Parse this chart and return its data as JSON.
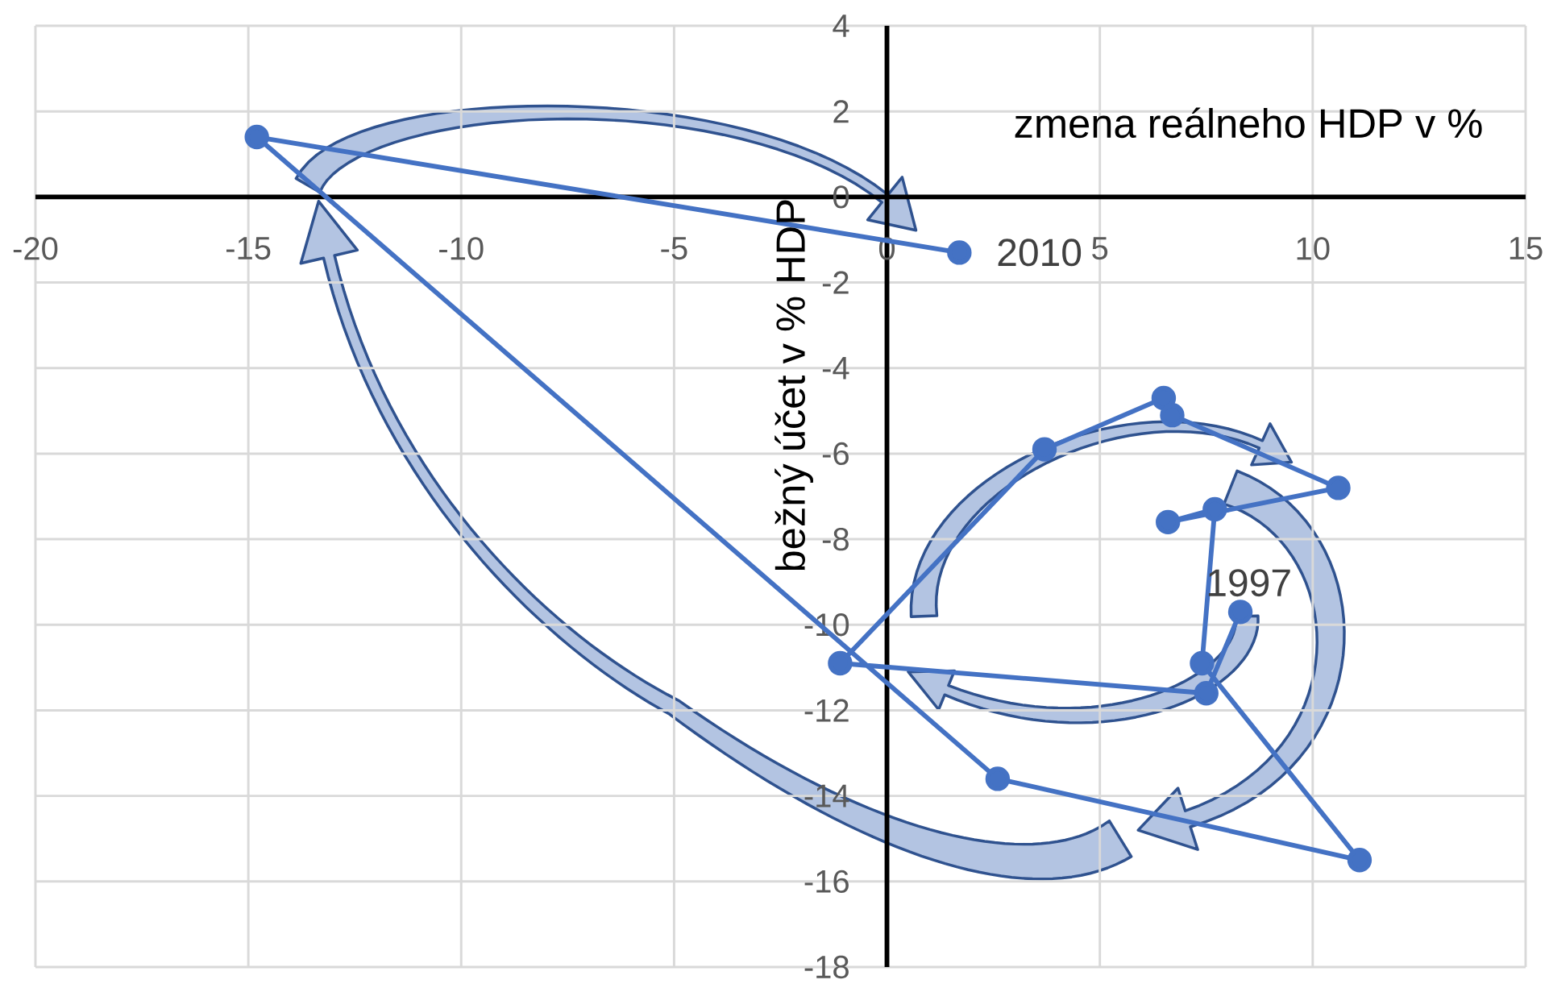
{
  "chart_data": {
    "type": "line",
    "xlabel": "zmena reálneho HDP v %",
    "ylabel": "bežný účet v % HDP",
    "xlim": [
      -20,
      15
    ],
    "xticks": [
      -20,
      -15,
      -10,
      -5,
      0,
      5,
      10,
      15
    ],
    "ylim": [
      -18,
      4
    ],
    "yticks": [
      -18,
      -16,
      -14,
      -12,
      -10,
      -8,
      -6,
      -4,
      -2,
      0,
      2,
      4
    ],
    "grid": true,
    "marker": "circle",
    "line_style": "solid",
    "series": [
      {
        "color": "#4472c4",
        "x": [
          8.3,
          7.5,
          -1.1,
          3.7,
          6.5,
          6.7,
          10.6,
          6.6,
          7.7,
          7.4,
          11.1,
          2.6,
          -14.8,
          1.7
        ],
        "values": [
          -9.7,
          -11.6,
          -10.9,
          -5.9,
          -4.7,
          -5.1,
          -6.8,
          -7.6,
          -7.3,
          -10.9,
          -15.5,
          -13.6,
          1.4,
          -1.3
        ]
      }
    ],
    "annotations": [
      {
        "text": "1997",
        "x": 8.3,
        "y": -9.7
      },
      {
        "text": "2010",
        "x": 1.7,
        "y": -1.3
      }
    ]
  }
}
